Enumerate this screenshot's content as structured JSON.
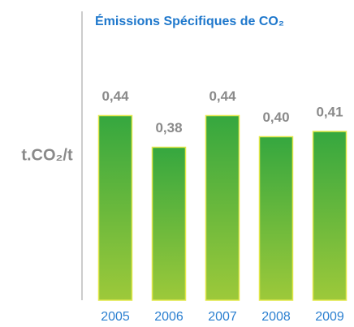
{
  "chart_data": {
    "type": "bar",
    "title": "Émissions Spécifiques de CO₂",
    "y_label": "t.CO₂/t",
    "categories": [
      "2005",
      "2006",
      "2007",
      "2008",
      "2009"
    ],
    "values": [
      0.44,
      0.38,
      0.44,
      0.4,
      0.41
    ],
    "value_labels": [
      "0,44",
      "0,38",
      "0,44",
      "0,40",
      "0,41"
    ],
    "color": "#3daa3f",
    "ylim": [
      0.09,
      0.5
    ]
  }
}
